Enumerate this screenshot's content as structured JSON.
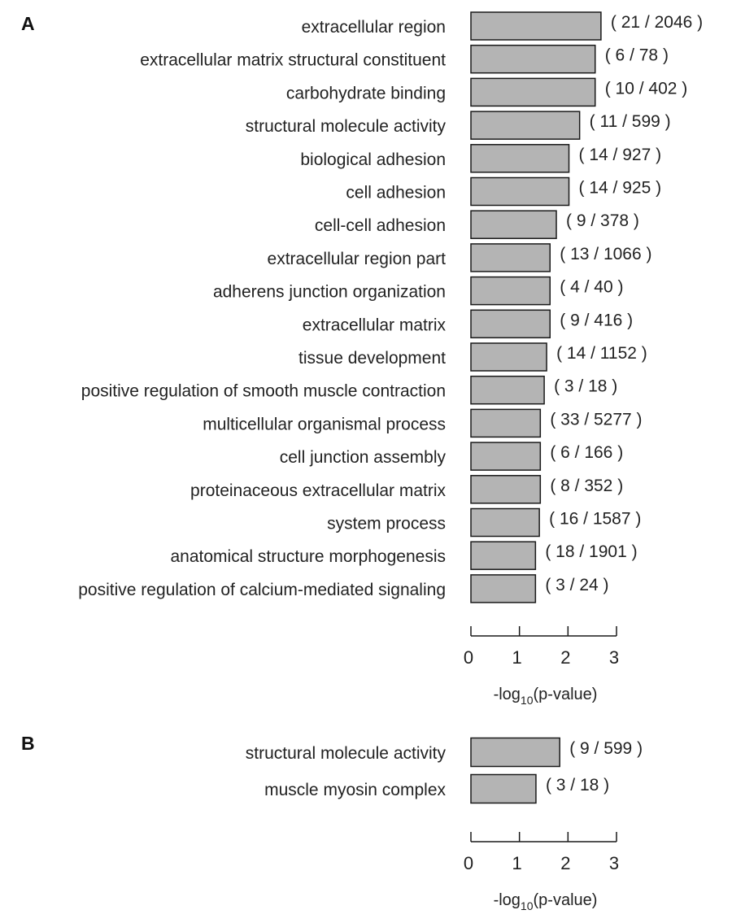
{
  "chart_data": [
    {
      "panel": "A",
      "type": "bar",
      "orientation": "horizontal",
      "categories": [
        "extracellular region",
        "extracellular matrix structural constituent",
        "carbohydrate binding",
        "structural molecule activity",
        "biological adhesion",
        "cell adhesion",
        "cell-cell adhesion",
        "extracellular region part",
        "adherens junction organization",
        "extracellular matrix",
        "tissue development",
        "positive regulation of smooth muscle contraction",
        "multicellular organismal process",
        "cell junction assembly",
        "proteinaceous extracellular matrix",
        "system process",
        "anatomical structure morphogenesis",
        "positive regulation of calcium-mediated signaling"
      ],
      "values": [
        2.68,
        2.56,
        2.56,
        2.24,
        2.02,
        2.02,
        1.76,
        1.63,
        1.63,
        1.63,
        1.56,
        1.51,
        1.43,
        1.43,
        1.43,
        1.41,
        1.33,
        1.33
      ],
      "data_labels": [
        "( 21 / 2046 )",
        "( 6 / 78 )",
        "( 10 / 402 )",
        "( 11 / 599 )",
        "( 14 / 927 )",
        "( 14 / 925 )",
        "( 9 / 378 )",
        "( 13 / 1066 )",
        "( 4 / 40 )",
        "( 9 / 416 )",
        "( 14 / 1152 )",
        "( 3 / 18 )",
        "( 33 / 5277 )",
        "( 6 / 166 )",
        "( 8 / 352 )",
        "( 16 / 1587 )",
        "( 18 / 1901 )",
        "( 3 / 24 )"
      ],
      "xlim": [
        0,
        3
      ],
      "xticks": [
        "0",
        "1",
        "2",
        "3"
      ],
      "xlabel": {
        "pre": "-log",
        "sub": "10",
        "post": "(p-value)"
      },
      "grid": false,
      "bar_color": "#b4b4b4"
    },
    {
      "panel": "B",
      "type": "bar",
      "orientation": "horizontal",
      "categories": [
        "structural molecule activity",
        "muscle myosin complex"
      ],
      "values": [
        1.83,
        1.34
      ],
      "data_labels": [
        "( 9 / 599 )",
        "( 3 / 18 )"
      ],
      "xlim": [
        0,
        3
      ],
      "xticks": [
        "0",
        "1",
        "2",
        "3"
      ],
      "xlabel": {
        "pre": "-log",
        "sub": "10",
        "post": "(p-value)"
      },
      "grid": false,
      "bar_color": "#b4b4b4"
    }
  ]
}
